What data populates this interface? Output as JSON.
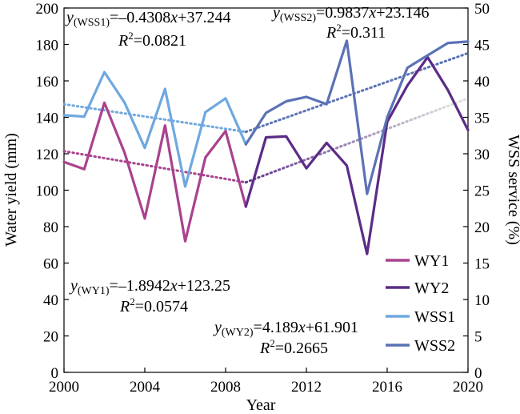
{
  "chart_data": {
    "type": "line",
    "xlabel": "Year",
    "ylabel_left": "Water yield (mm)",
    "ylabel_right": "WSS service (%)",
    "xlim": [
      2000,
      2020
    ],
    "ylim_left": [
      0,
      200
    ],
    "ylim_right": [
      0,
      50
    ],
    "x_ticks": [
      "2000",
      "2004",
      "2008",
      "2012",
      "2016",
      "2020"
    ],
    "y_left_ticks": [
      "0",
      "20",
      "40",
      "60",
      "80",
      "100",
      "120",
      "140",
      "160",
      "180",
      "200"
    ],
    "y_right_ticks": [
      "0",
      "5",
      "10",
      "15",
      "20",
      "25",
      "30",
      "35",
      "40",
      "45",
      "50"
    ],
    "grid": false,
    "legend_position": "bottom-right",
    "series": [
      {
        "name": "WY1",
        "axis": "left",
        "color": "#a9428e",
        "x": [
          2000,
          2001,
          2002,
          2003,
          2004,
          2005,
          2006,
          2007,
          2008,
          2009
        ],
        "values": [
          115.5,
          111.5,
          148,
          120.5,
          84.5,
          135.5,
          72,
          118,
          132.5,
          91
        ]
      },
      {
        "name": "WY2",
        "axis": "left",
        "color": "#5b2c87",
        "x": [
          2009,
          2010,
          2011,
          2012,
          2013,
          2014,
          2015,
          2016,
          2017,
          2018,
          2019,
          2020
        ],
        "values": [
          91,
          129,
          129.5,
          112,
          126,
          113.5,
          65,
          137.5,
          157.5,
          173,
          155,
          133
        ]
      },
      {
        "name": "WSS1",
        "axis": "right",
        "color": "#6fa8df",
        "x": [
          2000,
          2001,
          2002,
          2003,
          2004,
          2005,
          2006,
          2007,
          2008,
          2009
        ],
        "values": [
          35.3,
          35.1,
          41.2,
          37,
          30.8,
          38.9,
          25.5,
          35.7,
          37.6,
          31.3
        ]
      },
      {
        "name": "WSS2",
        "axis": "right",
        "color": "#5b72b5",
        "x": [
          2009,
          2010,
          2011,
          2012,
          2013,
          2014,
          2015,
          2016,
          2017,
          2018,
          2019,
          2020
        ],
        "values": [
          31.3,
          35.6,
          37.2,
          37.8,
          36.8,
          45.5,
          24.5,
          35,
          41.8,
          43.5,
          45.2,
          45.4
        ]
      }
    ],
    "trendlines": [
      {
        "axis": "left",
        "color": "#a9428e",
        "x": [
          2000,
          2009
        ],
        "y": [
          121.4,
          104.3
        ]
      },
      {
        "axis": "left",
        "color": "#5b2c87",
        "gradient_to": "#dddddd",
        "x": [
          2009,
          2020
        ],
        "y": [
          104.3,
          150.4
        ]
      },
      {
        "axis": "right",
        "color": "#6fa8df",
        "x": [
          2000,
          2009
        ],
        "y": [
          36.8,
          33.0
        ]
      },
      {
        "axis": "right",
        "color": "#5b72b5",
        "x": [
          2009,
          2020
        ],
        "y": [
          33.0,
          43.8
        ]
      }
    ],
    "annotations": {
      "wss1": {
        "subscript": "(WSS1)",
        "rhs": "=–0.4308",
        "rhs2": "+37.244",
        "r2": "=0.0821"
      },
      "wss2": {
        "subscript": "(WSS2)",
        "rhs": "=0.9837",
        "rhs2": "+23.146",
        "r2": "=0.311"
      },
      "wy1": {
        "subscript": "(WY1)",
        "rhs": "=–1.8942",
        "rhs2": "+123.25",
        "r2": "=0.0574"
      },
      "wy2": {
        "subscript": "(WY2)",
        "rhs": "=4.189",
        "rhs2": "+61.901",
        "r2": "=0.2665"
      },
      "y_symbol": "y",
      "x_symbol": "x",
      "r2_symbol": "R",
      "r2_sup": "2"
    },
    "legend": [
      "WY1",
      "WY2",
      "WSS1",
      "WSS2"
    ]
  }
}
